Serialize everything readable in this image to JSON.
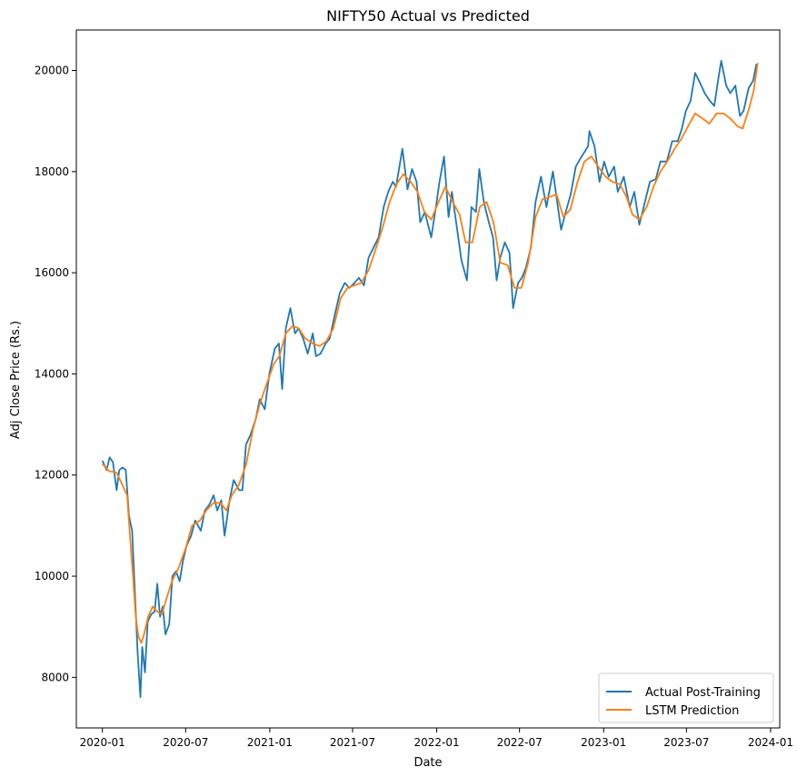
{
  "chart_data": {
    "type": "line",
    "title": "NIFTY50 Actual vs Predicted",
    "xlabel": "Date",
    "ylabel": "Adj Close Price (Rs.)",
    "xlim": [
      "2019-11-05",
      "2024-01-21"
    ],
    "ylim": [
      7000,
      20800
    ],
    "grid": false,
    "legend_position": "bottom-right",
    "x_ticks": [
      {
        "date": "2020-01-01",
        "label": "2020-01"
      },
      {
        "date": "2020-07-01",
        "label": "2020-07"
      },
      {
        "date": "2021-01-01",
        "label": "2021-01"
      },
      {
        "date": "2021-07-01",
        "label": "2021-07"
      },
      {
        "date": "2022-01-01",
        "label": "2022-01"
      },
      {
        "date": "2022-07-01",
        "label": "2022-07"
      },
      {
        "date": "2023-01-01",
        "label": "2023-01"
      },
      {
        "date": "2023-07-01",
        "label": "2023-07"
      },
      {
        "date": "2024-01-01",
        "label": "2024-01"
      }
    ],
    "y_ticks": [
      8000,
      10000,
      12000,
      14000,
      16000,
      18000,
      20000
    ],
    "series": [
      {
        "name": "Actual Post-Training",
        "color": "#1f77b4",
        "points": [
          [
            "2020-01-01",
            12282
          ],
          [
            "2020-01-10",
            12100
          ],
          [
            "2020-01-17",
            12350
          ],
          [
            "2020-01-24",
            12250
          ],
          [
            "2020-02-01",
            11700
          ],
          [
            "2020-02-07",
            12100
          ],
          [
            "2020-02-14",
            12150
          ],
          [
            "2020-02-21",
            12100
          ],
          [
            "2020-02-28",
            11200
          ],
          [
            "2020-03-06",
            10900
          ],
          [
            "2020-03-12",
            9700
          ],
          [
            "2020-03-18",
            8500
          ],
          [
            "2020-03-24",
            7610
          ],
          [
            "2020-03-28",
            8600
          ],
          [
            "2020-04-03",
            8100
          ],
          [
            "2020-04-09",
            9100
          ],
          [
            "2020-04-17",
            9250
          ],
          [
            "2020-04-24",
            9300
          ],
          [
            "2020-04-30",
            9850
          ],
          [
            "2020-05-06",
            9200
          ],
          [
            "2020-05-12",
            9400
          ],
          [
            "2020-05-18",
            8850
          ],
          [
            "2020-05-26",
            9050
          ],
          [
            "2020-06-02",
            10000
          ],
          [
            "2020-06-10",
            10100
          ],
          [
            "2020-06-18",
            9900
          ],
          [
            "2020-06-25",
            10300
          ],
          [
            "2020-07-03",
            10600
          ],
          [
            "2020-07-13",
            10800
          ],
          [
            "2020-07-22",
            11100
          ],
          [
            "2020-08-03",
            10900
          ],
          [
            "2020-08-12",
            11300
          ],
          [
            "2020-08-21",
            11400
          ],
          [
            "2020-08-31",
            11600
          ],
          [
            "2020-09-08",
            11300
          ],
          [
            "2020-09-17",
            11500
          ],
          [
            "2020-09-24",
            10800
          ],
          [
            "2020-10-05",
            11500
          ],
          [
            "2020-10-14",
            11900
          ],
          [
            "2020-10-26",
            11700
          ],
          [
            "2020-11-02",
            11700
          ],
          [
            "2020-11-10",
            12600
          ],
          [
            "2020-11-20",
            12800
          ],
          [
            "2020-12-01",
            13100
          ],
          [
            "2020-12-10",
            13500
          ],
          [
            "2020-12-21",
            13300
          ],
          [
            "2020-12-31",
            14000
          ],
          [
            "2021-01-12",
            14500
          ],
          [
            "2021-01-21",
            14600
          ],
          [
            "2021-01-28",
            13700
          ],
          [
            "2021-02-05",
            14900
          ],
          [
            "2021-02-15",
            15300
          ],
          [
            "2021-02-25",
            14800
          ],
          [
            "2021-03-05",
            14900
          ],
          [
            "2021-03-15",
            14700
          ],
          [
            "2021-03-25",
            14400
          ],
          [
            "2021-04-05",
            14800
          ],
          [
            "2021-04-12",
            14350
          ],
          [
            "2021-04-22",
            14400
          ],
          [
            "2021-05-03",
            14600
          ],
          [
            "2021-05-12",
            14700
          ],
          [
            "2021-05-24",
            15200
          ],
          [
            "2021-06-03",
            15600
          ],
          [
            "2021-06-14",
            15800
          ],
          [
            "2021-06-24",
            15700
          ],
          [
            "2021-07-05",
            15800
          ],
          [
            "2021-07-15",
            15900
          ],
          [
            "2021-07-26",
            15750
          ],
          [
            "2021-08-05",
            16300
          ],
          [
            "2021-08-16",
            16500
          ],
          [
            "2021-08-27",
            16700
          ],
          [
            "2021-09-07",
            17300
          ],
          [
            "2021-09-17",
            17600
          ],
          [
            "2021-09-27",
            17800
          ],
          [
            "2021-10-04",
            17700
          ],
          [
            "2021-10-18",
            18450
          ],
          [
            "2021-10-29",
            17650
          ],
          [
            "2021-11-08",
            18050
          ],
          [
            "2021-11-18",
            17800
          ],
          [
            "2021-11-26",
            17000
          ],
          [
            "2021-12-06",
            17200
          ],
          [
            "2021-12-20",
            16700
          ],
          [
            "2021-12-31",
            17350
          ],
          [
            "2022-01-07",
            17800
          ],
          [
            "2022-01-17",
            18300
          ],
          [
            "2022-01-27",
            17100
          ],
          [
            "2022-02-03",
            17600
          ],
          [
            "2022-02-14",
            16900
          ],
          [
            "2022-02-24",
            16250
          ],
          [
            "2022-03-08",
            15850
          ],
          [
            "2022-03-18",
            17300
          ],
          [
            "2022-03-28",
            17200
          ],
          [
            "2022-04-04",
            18050
          ],
          [
            "2022-04-14",
            17400
          ],
          [
            "2022-04-25",
            17000
          ],
          [
            "2022-05-04",
            16700
          ],
          [
            "2022-05-12",
            15850
          ],
          [
            "2022-05-20",
            16300
          ],
          [
            "2022-05-30",
            16600
          ],
          [
            "2022-06-09",
            16400
          ],
          [
            "2022-06-17",
            15300
          ],
          [
            "2022-06-28",
            15800
          ],
          [
            "2022-07-06",
            15900
          ],
          [
            "2022-07-15",
            16100
          ],
          [
            "2022-07-26",
            16500
          ],
          [
            "2022-08-05",
            17400
          ],
          [
            "2022-08-17",
            17900
          ],
          [
            "2022-08-29",
            17300
          ],
          [
            "2022-09-12",
            18000
          ],
          [
            "2022-09-23",
            17300
          ],
          [
            "2022-09-30",
            16850
          ],
          [
            "2022-10-10",
            17200
          ],
          [
            "2022-10-21",
            17550
          ],
          [
            "2022-11-01",
            18100
          ],
          [
            "2022-11-14",
            18300
          ],
          [
            "2022-11-28",
            18500
          ],
          [
            "2022-12-01",
            18800
          ],
          [
            "2022-12-12",
            18500
          ],
          [
            "2022-12-23",
            17800
          ],
          [
            "2023-01-02",
            18200
          ],
          [
            "2023-01-12",
            17900
          ],
          [
            "2023-01-24",
            18100
          ],
          [
            "2023-02-01",
            17600
          ],
          [
            "2023-02-14",
            17900
          ],
          [
            "2023-02-27",
            17300
          ],
          [
            "2023-03-09",
            17600
          ],
          [
            "2023-03-20",
            16950
          ],
          [
            "2023-03-31",
            17350
          ],
          [
            "2023-04-12",
            17800
          ],
          [
            "2023-04-25",
            17850
          ],
          [
            "2023-05-05",
            18200
          ],
          [
            "2023-05-19",
            18200
          ],
          [
            "2023-05-31",
            18600
          ],
          [
            "2023-06-12",
            18600
          ],
          [
            "2023-06-21",
            18850
          ],
          [
            "2023-06-30",
            19200
          ],
          [
            "2023-07-10",
            19400
          ],
          [
            "2023-07-20",
            19950
          ],
          [
            "2023-07-31",
            19750
          ],
          [
            "2023-08-10",
            19550
          ],
          [
            "2023-08-21",
            19400
          ],
          [
            "2023-08-31",
            19300
          ],
          [
            "2023-09-08",
            19800
          ],
          [
            "2023-09-15",
            20190
          ],
          [
            "2023-09-26",
            19700
          ],
          [
            "2023-10-05",
            19550
          ],
          [
            "2023-10-16",
            19700
          ],
          [
            "2023-10-26",
            19100
          ],
          [
            "2023-11-03",
            19200
          ],
          [
            "2023-11-14",
            19650
          ],
          [
            "2023-11-24",
            19800
          ],
          [
            "2023-12-01",
            20130
          ]
        ]
      },
      {
        "name": "LSTM Prediction",
        "color": "#ff7f0e",
        "points": [
          [
            "2020-01-01",
            12220
          ],
          [
            "2020-01-15",
            12080
          ],
          [
            "2020-02-01",
            12050
          ],
          [
            "2020-02-14",
            11800
          ],
          [
            "2020-02-24",
            11600
          ],
          [
            "2020-03-02",
            10700
          ],
          [
            "2020-03-08",
            10000
          ],
          [
            "2020-03-14",
            9200
          ],
          [
            "2020-03-20",
            8800
          ],
          [
            "2020-03-26",
            8680
          ],
          [
            "2020-04-01",
            8850
          ],
          [
            "2020-04-10",
            9200
          ],
          [
            "2020-04-20",
            9400
          ],
          [
            "2020-04-30",
            9300
          ],
          [
            "2020-05-10",
            9250
          ],
          [
            "2020-05-20",
            9550
          ],
          [
            "2020-06-01",
            9900
          ],
          [
            "2020-06-15",
            10150
          ],
          [
            "2020-07-01",
            10550
          ],
          [
            "2020-07-15",
            11000
          ],
          [
            "2020-08-01",
            11100
          ],
          [
            "2020-08-15",
            11300
          ],
          [
            "2020-08-31",
            11450
          ],
          [
            "2020-09-15",
            11450
          ],
          [
            "2020-09-28",
            11300
          ],
          [
            "2020-10-10",
            11600
          ],
          [
            "2020-10-25",
            11800
          ],
          [
            "2020-11-10",
            12200
          ],
          [
            "2020-11-25",
            12900
          ],
          [
            "2020-12-10",
            13400
          ],
          [
            "2020-12-25",
            13800
          ],
          [
            "2021-01-10",
            14200
          ],
          [
            "2021-01-22",
            14350
          ],
          [
            "2021-02-05",
            14800
          ],
          [
            "2021-02-20",
            14950
          ],
          [
            "2021-03-05",
            14900
          ],
          [
            "2021-03-20",
            14700
          ],
          [
            "2021-04-05",
            14600
          ],
          [
            "2021-04-20",
            14550
          ],
          [
            "2021-05-05",
            14650
          ],
          [
            "2021-05-20",
            14900
          ],
          [
            "2021-06-05",
            15500
          ],
          [
            "2021-06-20",
            15700
          ],
          [
            "2021-07-05",
            15750
          ],
          [
            "2021-07-20",
            15800
          ],
          [
            "2021-08-05",
            16050
          ],
          [
            "2021-08-20",
            16450
          ],
          [
            "2021-09-05",
            16900
          ],
          [
            "2021-09-20",
            17400
          ],
          [
            "2021-10-05",
            17750
          ],
          [
            "2021-10-20",
            17950
          ],
          [
            "2021-11-05",
            17800
          ],
          [
            "2021-11-20",
            17600
          ],
          [
            "2021-12-05",
            17200
          ],
          [
            "2021-12-20",
            17050
          ],
          [
            "2022-01-05",
            17400
          ],
          [
            "2022-01-20",
            17700
          ],
          [
            "2022-02-05",
            17400
          ],
          [
            "2022-02-20",
            17150
          ],
          [
            "2022-03-05",
            16600
          ],
          [
            "2022-03-20",
            16600
          ],
          [
            "2022-04-05",
            17300
          ],
          [
            "2022-04-20",
            17400
          ],
          [
            "2022-05-05",
            17000
          ],
          [
            "2022-05-20",
            16200
          ],
          [
            "2022-06-05",
            16150
          ],
          [
            "2022-06-20",
            15700
          ],
          [
            "2022-07-05",
            15700
          ],
          [
            "2022-07-20",
            16200
          ],
          [
            "2022-08-05",
            17100
          ],
          [
            "2022-08-20",
            17450
          ],
          [
            "2022-09-05",
            17500
          ],
          [
            "2022-09-20",
            17550
          ],
          [
            "2022-10-05",
            17100
          ],
          [
            "2022-10-20",
            17250
          ],
          [
            "2022-11-05",
            17800
          ],
          [
            "2022-11-20",
            18200
          ],
          [
            "2022-12-05",
            18300
          ],
          [
            "2022-12-20",
            18100
          ],
          [
            "2023-01-05",
            17900
          ],
          [
            "2023-01-20",
            17800
          ],
          [
            "2023-02-05",
            17750
          ],
          [
            "2023-02-20",
            17500
          ],
          [
            "2023-03-05",
            17150
          ],
          [
            "2023-03-20",
            17050
          ],
          [
            "2023-04-05",
            17300
          ],
          [
            "2023-04-20",
            17700
          ],
          [
            "2023-05-05",
            18000
          ],
          [
            "2023-05-20",
            18200
          ],
          [
            "2023-06-05",
            18450
          ],
          [
            "2023-06-20",
            18650
          ],
          [
            "2023-07-05",
            18900
          ],
          [
            "2023-07-20",
            19150
          ],
          [
            "2023-08-05",
            19050
          ],
          [
            "2023-08-20",
            18950
          ],
          [
            "2023-09-05",
            19150
          ],
          [
            "2023-09-20",
            19150
          ],
          [
            "2023-10-05",
            19050
          ],
          [
            "2023-10-20",
            18900
          ],
          [
            "2023-11-01",
            18850
          ],
          [
            "2023-11-15",
            19250
          ],
          [
            "2023-11-25",
            19600
          ],
          [
            "2023-12-04",
            20150
          ]
        ]
      }
    ]
  }
}
